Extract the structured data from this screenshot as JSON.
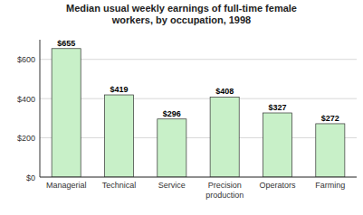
{
  "chart_data": {
    "type": "bar",
    "title": "Median usual weekly earnings of full-time female\nworkers, by occupation, 1998",
    "categories": [
      "Managerial",
      "Technical",
      "Service",
      "Precision\nproduction",
      "Operators",
      "Farming"
    ],
    "values": [
      655,
      419,
      296,
      408,
      327,
      272
    ],
    "value_labels": [
      "$655",
      "$419",
      "$296",
      "$408",
      "$327",
      "$272"
    ],
    "data_labels": true,
    "color": "#c8f0c8",
    "ylim": [
      0,
      700
    ],
    "yticks": [
      {
        "value": 0,
        "label": "$0"
      },
      {
        "value": 200,
        "label": "$200"
      },
      {
        "value": 400,
        "label": "$400"
      },
      {
        "value": 600,
        "label": "$600"
      }
    ],
    "grid": true
  }
}
